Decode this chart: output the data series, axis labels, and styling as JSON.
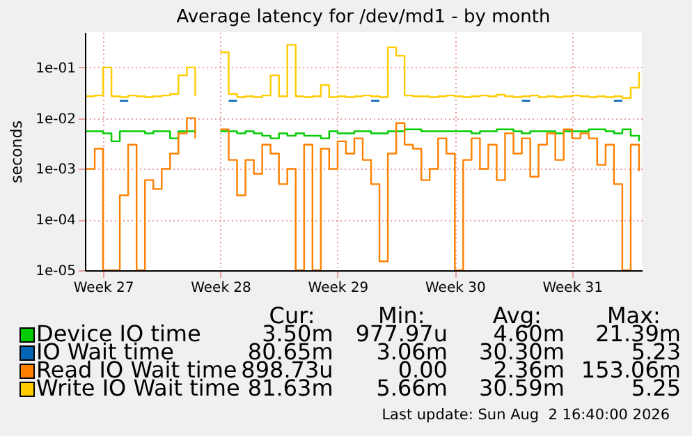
{
  "chart_data": {
    "type": "step",
    "title": "Average latency for /dev/md1 - by month",
    "ylabel": "seconds",
    "log": "y",
    "grid": true,
    "legend": "bottom",
    "x": [
      "2026-06-28T00:00",
      "2026-06-28T12:00",
      "2026-06-29T00:00",
      "2026-06-29T12:00",
      "2026-06-30T00:00",
      "2026-06-30T12:00",
      "2026-07-01T00:00",
      "2026-07-01T12:00",
      "2026-07-02T00:00",
      "2026-07-02T12:00",
      "2026-07-03T00:00",
      "2026-07-03T12:00",
      "2026-07-04T00:00",
      "2026-07-04T12:00",
      "2026-07-05T00:00",
      "2026-07-05T12:00",
      "2026-07-06T00:00",
      "2026-07-06T12:00",
      "2026-07-07T00:00",
      "2026-07-07T12:00",
      "2026-07-08T00:00",
      "2026-07-08T12:00",
      "2026-07-09T00:00",
      "2026-07-09T12:00",
      "2026-07-10T00:00",
      "2026-07-10T12:00",
      "2026-07-11T00:00",
      "2026-07-11T12:00",
      "2026-07-12T00:00",
      "2026-07-12T12:00",
      "2026-07-13T00:00",
      "2026-07-13T12:00",
      "2026-07-14T00:00",
      "2026-07-14T12:00",
      "2026-07-15T00:00",
      "2026-07-15T12:00",
      "2026-07-16T00:00",
      "2026-07-16T12:00",
      "2026-07-17T00:00",
      "2026-07-17T12:00",
      "2026-07-18T00:00",
      "2026-07-18T12:00",
      "2026-07-19T00:00",
      "2026-07-19T12:00",
      "2026-07-20T00:00",
      "2026-07-20T12:00",
      "2026-07-21T00:00",
      "2026-07-21T12:00",
      "2026-07-22T00:00",
      "2026-07-22T12:00",
      "2026-07-23T00:00",
      "2026-07-23T12:00",
      "2026-07-24T00:00",
      "2026-07-24T12:00",
      "2026-07-25T00:00",
      "2026-07-25T12:00",
      "2026-07-26T00:00",
      "2026-07-26T12:00",
      "2026-07-27T00:00",
      "2026-07-27T12:00",
      "2026-07-28T00:00",
      "2026-07-28T12:00",
      "2026-07-29T00:00",
      "2026-07-29T12:00",
      "2026-07-30T00:00",
      "2026-07-30T12:00",
      "2026-07-31T00:00"
    ],
    "xlim": [
      "2026-06-27T22:00",
      "2026-07-31T04:00"
    ],
    "xticks": [
      {
        "value": "2026-06-29T00:00",
        "label": "Week 27"
      },
      {
        "value": "2026-07-06T00:00",
        "label": "Week 28"
      },
      {
        "value": "2026-07-13T00:00",
        "label": "Week 29"
      },
      {
        "value": "2026-07-20T00:00",
        "label": "Week 30"
      },
      {
        "value": "2026-07-27T00:00",
        "label": "Week 31"
      }
    ],
    "ylim": [
      1e-05,
      0.5
    ],
    "yticks": [
      {
        "value": 1e-05,
        "label": "1e-05"
      },
      {
        "value": 0.0001,
        "label": "1e-04"
      },
      {
        "value": 0.001,
        "label": "1e-03"
      },
      {
        "value": 0.01,
        "label": "1e-02"
      },
      {
        "value": 0.1,
        "label": "1e-01"
      }
    ],
    "series": [
      {
        "name": "Device IO time",
        "color": "#00cc00",
        "values": [
          0.0055,
          0.0055,
          0.005,
          0.0035,
          0.0055,
          0.0055,
          0.0055,
          0.005,
          0.0055,
          0.0055,
          0.004,
          0.0055,
          0.0055,
          0.005,
          null,
          null,
          0.0055,
          0.0055,
          0.005,
          0.0055,
          0.005,
          0.0045,
          0.004,
          0.005,
          0.0045,
          0.005,
          0.0045,
          0.0045,
          0.004,
          0.0055,
          0.005,
          0.005,
          0.0055,
          0.0055,
          0.005,
          0.005,
          0.0055,
          0.0055,
          0.006,
          0.006,
          0.0055,
          0.0055,
          0.0055,
          0.0055,
          0.0055,
          0.0055,
          0.005,
          0.0055,
          0.0055,
          0.006,
          0.006,
          0.0055,
          0.005,
          0.0055,
          0.0055,
          0.0055,
          0.005,
          0.0055,
          0.0055,
          0.0055,
          0.006,
          0.006,
          0.0055,
          0.005,
          0.006,
          0.0045,
          0.0035
        ]
      },
      {
        "name": "IO Wait time",
        "color": "#0066b3",
        "values": [
          null,
          null,
          null,
          null,
          0.022,
          0.022,
          null,
          null,
          null,
          null,
          null,
          null,
          null,
          null,
          null,
          null,
          null,
          0.022,
          0.022,
          null,
          null,
          null,
          null,
          null,
          null,
          null,
          null,
          null,
          null,
          null,
          null,
          null,
          null,
          null,
          0.022,
          0.022,
          null,
          null,
          null,
          null,
          null,
          null,
          null,
          null,
          null,
          null,
          null,
          null,
          null,
          null,
          null,
          null,
          0.022,
          0.022,
          null,
          null,
          null,
          null,
          null,
          null,
          null,
          null,
          null,
          0.022,
          0.022,
          null,
          null
        ]
      },
      {
        "name": "Read IO Wait time",
        "color": "#ff8000",
        "values": [
          0.001,
          0.0025,
          1e-05,
          1e-05,
          0.0003,
          0.003,
          1e-05,
          0.0006,
          0.0004,
          0.001,
          0.002,
          0.005,
          0.01,
          0.004,
          null,
          null,
          0.006,
          0.0015,
          0.0003,
          0.0015,
          0.0008,
          0.003,
          0.002,
          0.0005,
          0.001,
          1e-05,
          0.003,
          1e-05,
          0.0025,
          0.001,
          0.0035,
          0.002,
          0.004,
          0.0015,
          0.0005,
          1.5e-05,
          0.002,
          0.008,
          0.003,
          0.0025,
          0.0006,
          0.001,
          0.004,
          0.002,
          1e-05,
          0.0015,
          0.004,
          0.001,
          0.003,
          0.0006,
          0.005,
          0.002,
          0.004,
          0.0007,
          0.003,
          0.005,
          0.0015,
          0.006,
          0.004,
          0.005,
          0.004,
          0.0012,
          0.003,
          0.0005,
          1e-05,
          0.003,
          0.0009
        ]
      },
      {
        "name": "Write IO Wait time",
        "color": "#ffcc00",
        "values": [
          0.027,
          0.028,
          0.1,
          0.027,
          0.026,
          0.028,
          0.027,
          0.026,
          0.027,
          0.028,
          0.03,
          0.07,
          0.1,
          0.027,
          null,
          null,
          0.2,
          0.03,
          0.026,
          0.027,
          0.026,
          0.028,
          0.07,
          0.027,
          0.28,
          0.027,
          0.026,
          0.027,
          0.045,
          0.026,
          0.027,
          0.026,
          0.027,
          0.028,
          0.027,
          0.026,
          0.25,
          0.17,
          0.028,
          0.027,
          0.027,
          0.026,
          0.027,
          0.028,
          0.027,
          0.026,
          0.027,
          0.028,
          0.027,
          0.029,
          0.027,
          0.026,
          0.027,
          0.028,
          0.026,
          0.027,
          0.026,
          0.027,
          0.028,
          0.027,
          0.026,
          0.027,
          0.026,
          0.027,
          0.025,
          0.04,
          0.082
        ]
      }
    ],
    "annotations": [
      "Cur:",
      "Min:",
      "Avg:",
      "Max:",
      "3.50m",
      "977.97u",
      "4.60m",
      "21.39m",
      "80.65m",
      "3.06m",
      "30.30m",
      "5.23",
      "898.73u",
      "0.00",
      "2.36m",
      "153.06m",
      "81.63m",
      "5.66m",
      "30.59m",
      "5.25",
      "Last update: Sun Aug  2 16:40:00 2026"
    ]
  }
}
